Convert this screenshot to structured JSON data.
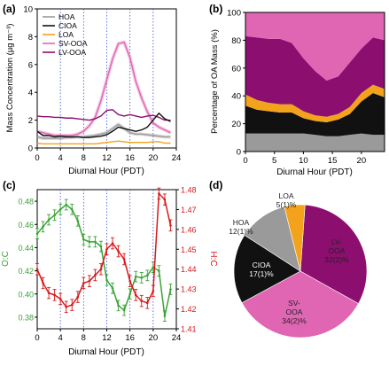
{
  "panel_labels": [
    "(a)",
    "(b)",
    "(c)",
    "(d)"
  ],
  "colors": {
    "HOA": "#9a9a9a",
    "CIOA": "#111111",
    "LOA": "#f3a21c",
    "SV-OOA": "#e066b4",
    "LV-OOA": "#8c0f70",
    "OC": "#3aa335",
    "HC": "#d7191c",
    "divider": "#3b4fd8"
  },
  "chart_data": [
    {
      "type": "line",
      "panel": "(a)",
      "xlabel": "Diurnal Hour (PDT)",
      "ylabel": "Mass Concentration (µg m⁻³)",
      "xlim": [
        0,
        24
      ],
      "ylim": [
        0,
        10
      ],
      "xticks": [
        0,
        4,
        8,
        12,
        16,
        20,
        24
      ],
      "yticks": [
        0,
        2,
        4,
        6,
        8,
        10
      ],
      "legend": "top-left",
      "x": [
        0,
        1,
        2,
        3,
        4,
        5,
        6,
        7,
        8,
        9,
        10,
        11,
        12,
        13,
        14,
        15,
        16,
        17,
        18,
        19,
        20,
        21,
        22,
        23
      ],
      "series": [
        {
          "name": "HOA",
          "values": [
            0.8,
            0.7,
            0.7,
            0.7,
            0.7,
            0.75,
            0.75,
            0.8,
            0.8,
            0.85,
            0.9,
            1.0,
            1.1,
            1.4,
            1.7,
            1.4,
            1.1,
            1.0,
            1.0,
            0.95,
            0.9,
            0.85,
            0.8,
            0.8
          ]
        },
        {
          "name": "CIOA",
          "values": [
            1.2,
            0.9,
            0.9,
            0.8,
            0.85,
            0.8,
            0.8,
            0.8,
            0.75,
            0.75,
            0.8,
            0.85,
            0.95,
            1.2,
            1.5,
            1.4,
            1.3,
            1.2,
            1.3,
            1.5,
            2.0,
            2.5,
            2.1,
            1.9
          ]
        },
        {
          "name": "LOA",
          "values": [
            0.35,
            0.3,
            0.3,
            0.3,
            0.3,
            0.3,
            0.3,
            0.3,
            0.3,
            0.3,
            0.3,
            0.35,
            0.4,
            0.45,
            0.5,
            0.45,
            0.4,
            0.4,
            0.4,
            0.4,
            0.45,
            0.45,
            0.35,
            0.35
          ]
        },
        {
          "name": "SV-OOA",
          "values": [
            1.2,
            1.1,
            1.0,
            0.9,
            0.9,
            0.9,
            0.9,
            1.0,
            1.2,
            1.6,
            2.2,
            3.4,
            4.9,
            6.4,
            7.5,
            7.6,
            6.5,
            4.8,
            3.6,
            2.6,
            1.8,
            1.5,
            1.3,
            1.1
          ]
        },
        {
          "name": "LV-OOA",
          "values": [
            2.3,
            2.25,
            2.25,
            2.2,
            2.2,
            2.15,
            2.15,
            2.1,
            2.05,
            2.0,
            2.1,
            2.3,
            2.7,
            2.75,
            2.4,
            2.3,
            2.4,
            2.3,
            2.2,
            2.3,
            2.35,
            2.2,
            2.0,
            2.0
          ]
        }
      ]
    },
    {
      "type": "area",
      "panel": "(b)",
      "xlabel": "Diurnal Hour (PDT)",
      "ylabel": "Percentage of OA Mass (%)",
      "xlim": [
        0,
        24
      ],
      "ylim": [
        0,
        100
      ],
      "xticks": [
        0,
        5,
        10,
        15,
        20
      ],
      "yticks": [
        0,
        20,
        40,
        60,
        80,
        100
      ],
      "stacked": true,
      "x": [
        0,
        2,
        4,
        6,
        8,
        10,
        12,
        14,
        16,
        18,
        20,
        22,
        24
      ],
      "series": [
        {
          "name": "HOA",
          "values": [
            13,
            13,
            13,
            13,
            13,
            13,
            12,
            11,
            11,
            12,
            13,
            12,
            12
          ]
        },
        {
          "name": "CIOA",
          "values": [
            20,
            17,
            16,
            15,
            15,
            11,
            10,
            10,
            12,
            15,
            23,
            30,
            27
          ]
        },
        {
          "name": "LOA",
          "values": [
            8,
            7,
            6,
            6,
            6,
            5,
            4,
            4,
            4,
            5,
            6,
            6,
            6
          ]
        },
        {
          "name": "LV-OOA",
          "values": [
            42,
            45,
            46,
            47,
            44,
            38,
            32,
            26,
            27,
            32,
            32,
            34,
            35
          ]
        },
        {
          "name": "SV-OOA",
          "values": [
            17,
            18,
            19,
            19,
            22,
            33,
            42,
            49,
            46,
            36,
            26,
            18,
            20
          ]
        }
      ]
    },
    {
      "type": "line",
      "panel": "(c)",
      "xlabel": "Diurnal Hour (PDT)",
      "ylabel_left": "O:C",
      "ylabel_right": "H:C",
      "xlim": [
        0,
        24
      ],
      "ylim_left": [
        0.37,
        0.49
      ],
      "ylim_right": [
        1.41,
        1.48
      ],
      "xticks": [
        0,
        4,
        8,
        12,
        16,
        20,
        24
      ],
      "yticks_left": [
        0.38,
        0.4,
        0.42,
        0.44,
        0.46,
        0.48
      ],
      "yticks_right": [
        1.41,
        1.42,
        1.43,
        1.44,
        1.45,
        1.46,
        1.47,
        1.48
      ],
      "x": [
        0,
        1,
        2,
        3,
        4,
        5,
        6,
        7,
        8,
        9,
        10,
        11,
        12,
        13,
        14,
        15,
        16,
        17,
        18,
        19,
        20,
        21,
        22,
        23
      ],
      "series": [
        {
          "name": "O:C",
          "axis": "left",
          "values": [
            0.452,
            0.458,
            0.464,
            0.468,
            0.473,
            0.477,
            0.473,
            0.463,
            0.447,
            0.445,
            0.445,
            0.441,
            0.412,
            0.405,
            0.39,
            0.386,
            0.4,
            0.415,
            0.414,
            0.416,
            0.423,
            0.42,
            0.381,
            0.404
          ]
        },
        {
          "name": "H:C",
          "axis": "right",
          "values": [
            1.44,
            1.433,
            1.428,
            1.427,
            1.425,
            1.421,
            1.422,
            1.426,
            1.433,
            1.434,
            1.437,
            1.44,
            1.45,
            1.453,
            1.449,
            1.445,
            1.434,
            1.427,
            1.424,
            1.423,
            1.429,
            1.478,
            1.475,
            1.462
          ]
        }
      ]
    },
    {
      "type": "pie",
      "panel": "(d)",
      "slices": [
        {
          "name": "LV-OOA",
          "value": 32,
          "label": "LV-OOA 32(2)%"
        },
        {
          "name": "SV-OOA",
          "value": 34,
          "label": "SV-OOA 34(2)%"
        },
        {
          "name": "CIOA",
          "value": 17,
          "label": "CIOA 17(1)%"
        },
        {
          "name": "HOA",
          "value": 12,
          "label": "HOA 12(1)%"
        },
        {
          "name": "LOA",
          "value": 5,
          "label": "LOA 5(1)%"
        }
      ]
    }
  ]
}
